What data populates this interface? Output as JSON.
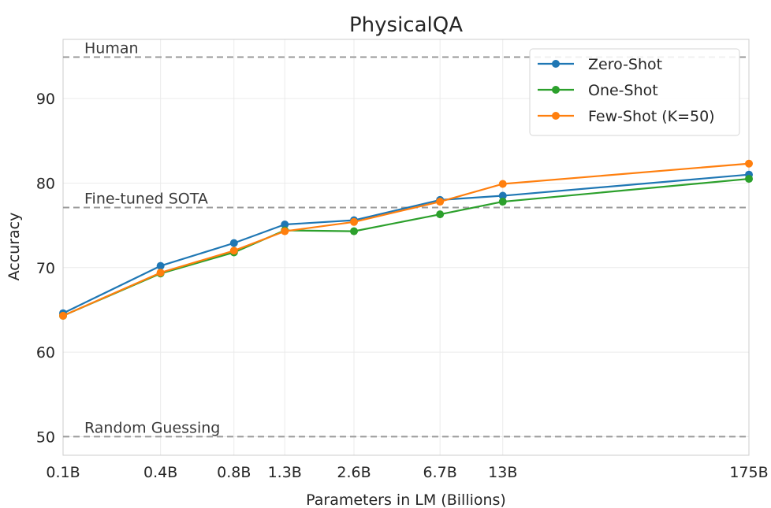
{
  "chart_data": {
    "type": "line",
    "title": "PhysicalQA",
    "xlabel": "Parameters in LM (Billions)",
    "ylabel": "Accuracy",
    "categories": [
      "0.1B",
      "0.4B",
      "0.8B",
      "1.3B",
      "2.6B",
      "6.7B",
      "13B",
      "175B"
    ],
    "x": [
      0.125,
      0.35,
      0.76,
      1.3,
      2.7,
      6.7,
      13,
      175
    ],
    "xscale": "log",
    "ylim": [
      47.8,
      97
    ],
    "yticks": [
      50,
      60,
      70,
      80,
      90
    ],
    "grid": true,
    "legend_position": "top-right",
    "series": [
      {
        "name": "Zero-Shot",
        "color": "#1f77b4",
        "values": [
          64.6,
          70.2,
          72.9,
          75.1,
          75.6,
          78.0,
          78.5,
          81.0
        ]
      },
      {
        "name": "One-Shot",
        "color": "#2ca02c",
        "values": [
          64.3,
          69.3,
          71.8,
          74.4,
          74.3,
          76.3,
          77.8,
          80.5
        ]
      },
      {
        "name": "Few-Shot (K=50)",
        "color": "#ff7f0e",
        "values": [
          64.3,
          69.4,
          72.0,
          74.3,
          75.4,
          77.8,
          79.9,
          82.3
        ]
      }
    ],
    "reference_lines": [
      {
        "label": "Human",
        "value": 94.9
      },
      {
        "label": "Fine-tuned SOTA",
        "value": 77.1
      },
      {
        "label": "Random Guessing",
        "value": 50.0
      }
    ]
  }
}
